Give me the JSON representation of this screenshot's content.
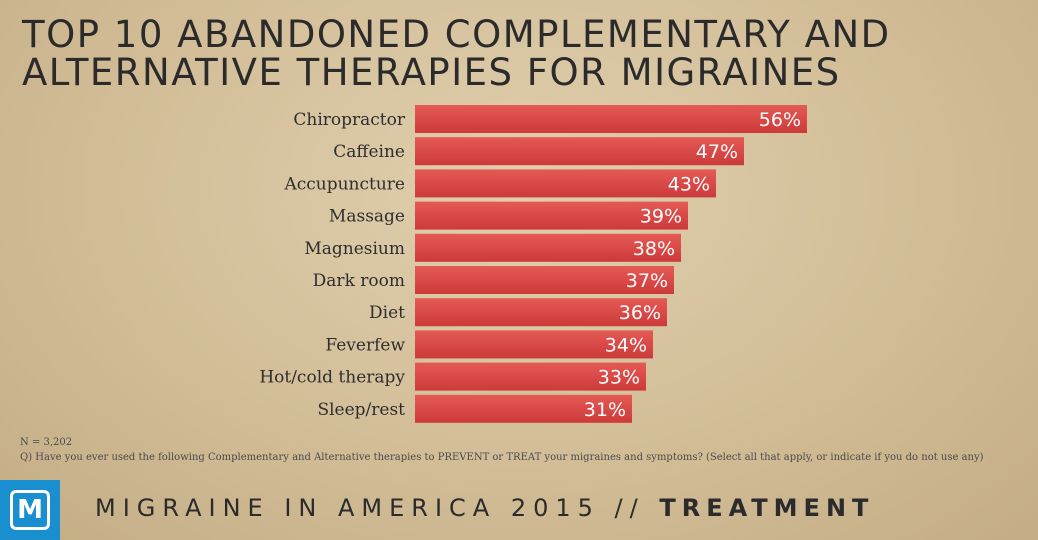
{
  "title": {
    "line1": "TOP 10 ABANDONED COMPLEMENTARY AND",
    "line2": "ALTERNATIVE THERAPIES FOR MIGRAINES"
  },
  "chart_data": {
    "type": "bar",
    "orientation": "horizontal",
    "title": "TOP 10 ABANDONED COMPLEMENTARY AND ALTERNATIVE THERAPIES FOR MIGRAINES",
    "categories": [
      "Chiropractor",
      "Caffeine",
      "Accupuncture",
      "Massage",
      "Magnesium",
      "Dark room",
      "Diet",
      "Feverfew",
      "Hot/cold therapy",
      "Sleep/rest"
    ],
    "values": [
      56,
      47,
      43,
      39,
      38,
      37,
      36,
      34,
      33,
      31
    ],
    "value_labels": [
      "56%",
      "47%",
      "43%",
      "39%",
      "38%",
      "37%",
      "36%",
      "34%",
      "33%",
      "31%"
    ],
    "xlim": [
      0,
      100
    ],
    "grid": false,
    "bar_color": "#d94545"
  },
  "notes": {
    "n": "N = 3,202",
    "question": "Q) Have you ever used the following Complementary and Alternative therapies to PREVENT or TREAT your migraines and symptoms? (Select all that apply, or indicate if you do not use any)"
  },
  "logo": {
    "letter": "M",
    "color": "#1a8fd0"
  },
  "footer": {
    "main": "MIGRAINE IN AMERICA 2015 // ",
    "bold": "TREATMENT"
  }
}
